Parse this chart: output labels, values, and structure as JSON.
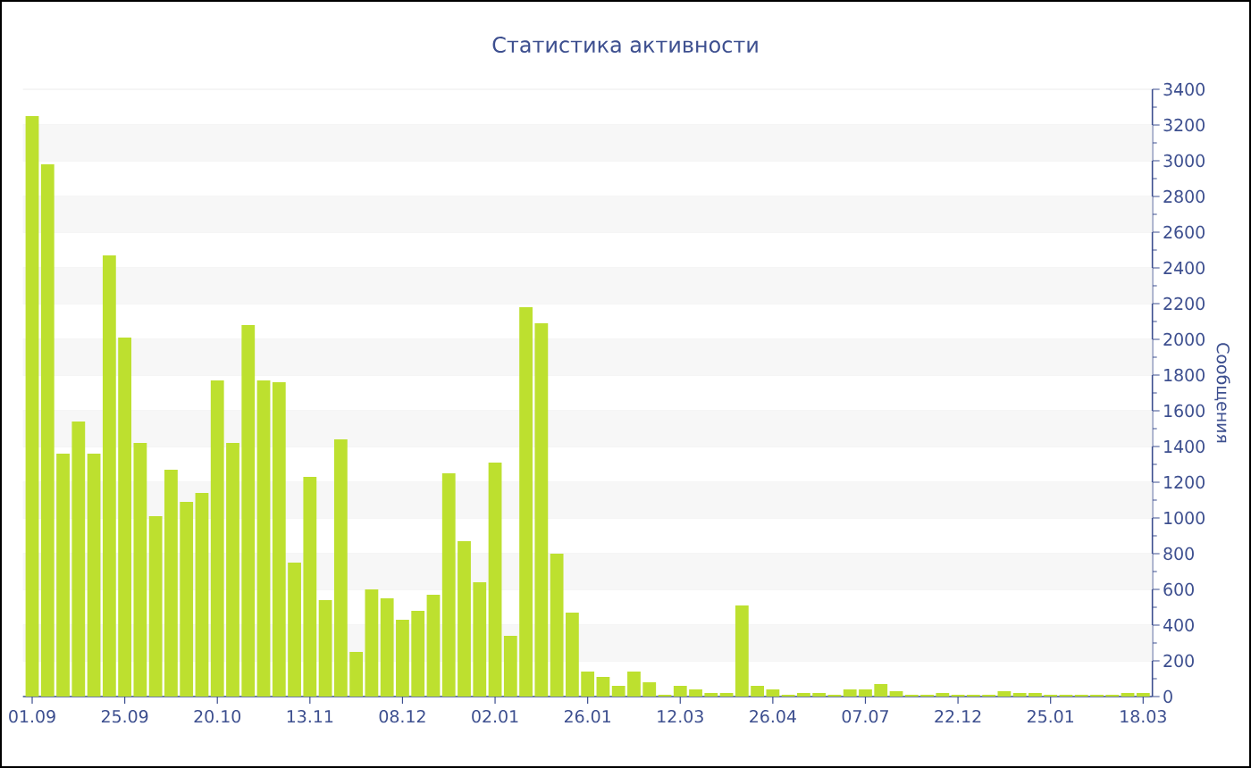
{
  "chart_data": {
    "type": "bar",
    "title": "Статистика активности",
    "ylabel": "Сообщения",
    "categories": [
      "01.09",
      null,
      null,
      null,
      null,
      null,
      "25.09",
      null,
      null,
      null,
      null,
      null,
      "20.10",
      null,
      null,
      null,
      null,
      null,
      "13.11",
      null,
      null,
      null,
      null,
      null,
      "08.12",
      null,
      null,
      null,
      null,
      null,
      "02.01",
      null,
      null,
      null,
      null,
      null,
      "26.01",
      null,
      null,
      null,
      null,
      null,
      "12.03",
      null,
      null,
      null,
      null,
      null,
      "26.04",
      null,
      null,
      null,
      null,
      null,
      "07.07",
      null,
      null,
      null,
      null,
      null,
      "22.12",
      null,
      null,
      null,
      null,
      null,
      "25.01",
      null,
      null,
      null,
      null,
      null,
      "18.03"
    ],
    "values": [
      3250,
      2980,
      1360,
      1540,
      1360,
      2470,
      2010,
      1420,
      1010,
      1270,
      1090,
      1140,
      1770,
      1420,
      2080,
      1770,
      1760,
      750,
      1230,
      540,
      1440,
      250,
      600,
      550,
      430,
      480,
      570,
      1250,
      870,
      640,
      1310,
      340,
      2180,
      2090,
      800,
      470,
      140,
      110,
      60,
      140,
      80,
      10,
      60,
      40,
      20,
      20,
      510,
      60,
      40,
      10,
      20,
      20,
      10,
      40,
      40,
      70,
      30,
      10,
      10,
      20,
      10,
      10,
      10,
      30,
      20,
      20,
      10,
      10,
      10,
      10,
      10,
      20,
      20
    ],
    "color": "#bde02f",
    "ylim": [
      0,
      3400
    ],
    "yticks": [
      0,
      200,
      400,
      600,
      800,
      1000,
      1200,
      1400,
      1600,
      1800,
      2000,
      2200,
      2400,
      2600,
      2800,
      3000,
      3200,
      3400
    ],
    "grid": "y"
  }
}
